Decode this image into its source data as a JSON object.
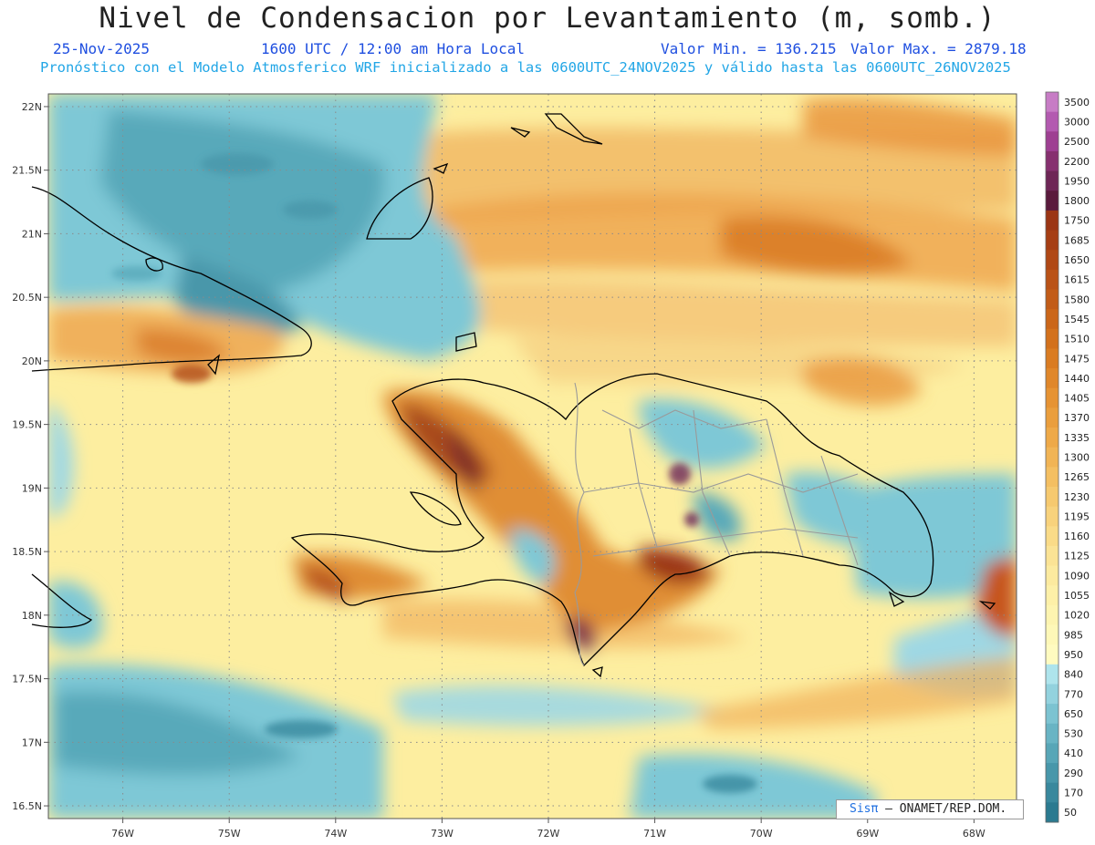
{
  "title": "Nivel de Condensacion por Levantamiento (m, somb.)",
  "header": {
    "date": "25-Nov-2025",
    "time": "1600 UTC / 12:00 am Hora Local",
    "min_label": "Valor Min. = 136.215",
    "max_label": "Valor Max. = 2879.18",
    "forecast": "Pronóstico con el Modelo Atmosferico WRF inicializado a las 0600UTC_24NOV2025 y válido hasta las  0600UTC_26NOV2025"
  },
  "map": {
    "lon_ticks": [
      "76W",
      "75W",
      "74W",
      "73W",
      "72W",
      "71W",
      "70W",
      "69W",
      "68W"
    ],
    "lat_ticks": [
      "22N",
      "21.5N",
      "21N",
      "20.5N",
      "20N",
      "19.5N",
      "19N",
      "18.5N",
      "18N",
      "17.5N",
      "17N",
      "16.5N"
    ],
    "lon_range": [
      -76.7,
      -67.6
    ],
    "lat_range": [
      16.4,
      22.1
    ],
    "grid": "dotted"
  },
  "colorbar": {
    "levels": [
      "3500",
      "3000",
      "2500",
      "2200",
      "1950",
      "1800",
      "1750",
      "1685",
      "1650",
      "1615",
      "1580",
      "1545",
      "1510",
      "1475",
      "1440",
      "1405",
      "1370",
      "1335",
      "1300",
      "1265",
      "1230",
      "1195",
      "1160",
      "1125",
      "1090",
      "1055",
      "1020",
      "985",
      "950",
      "840",
      "770",
      "650",
      "530",
      "410",
      "290",
      "170",
      "50"
    ],
    "colors": [
      "#c77cc5",
      "#b35ab0",
      "#9e3f92",
      "#86306f",
      "#6e2656",
      "#5a1a3c",
      "#9b3514",
      "#a63e14",
      "#b04815",
      "#ba5216",
      "#c25c18",
      "#cb6619",
      "#d3711c",
      "#da7c22",
      "#e0872a",
      "#e69333",
      "#ea9e3d",
      "#eea948",
      "#f1b455",
      "#f4bf62",
      "#f6c96f",
      "#f8d27c",
      "#fadb88",
      "#fbe395",
      "#fcea9f",
      "#fdf0a8",
      "#fdf4b0",
      "#fef8b8",
      "#fffbc0",
      "#aee4ec",
      "#93d2de",
      "#7cc3d1",
      "#69b4c4",
      "#58a6b7",
      "#4897aa",
      "#39889d",
      "#2b7a90"
    ]
  },
  "credit": {
    "logo": "Sisπ",
    "text": "– ONAMET/REP.DOM."
  },
  "colors": {
    "header_blue": "#1f4fe0",
    "header_cyan": "#22a6e6",
    "coast": "#000000",
    "borders": "#9a9a9a"
  }
}
